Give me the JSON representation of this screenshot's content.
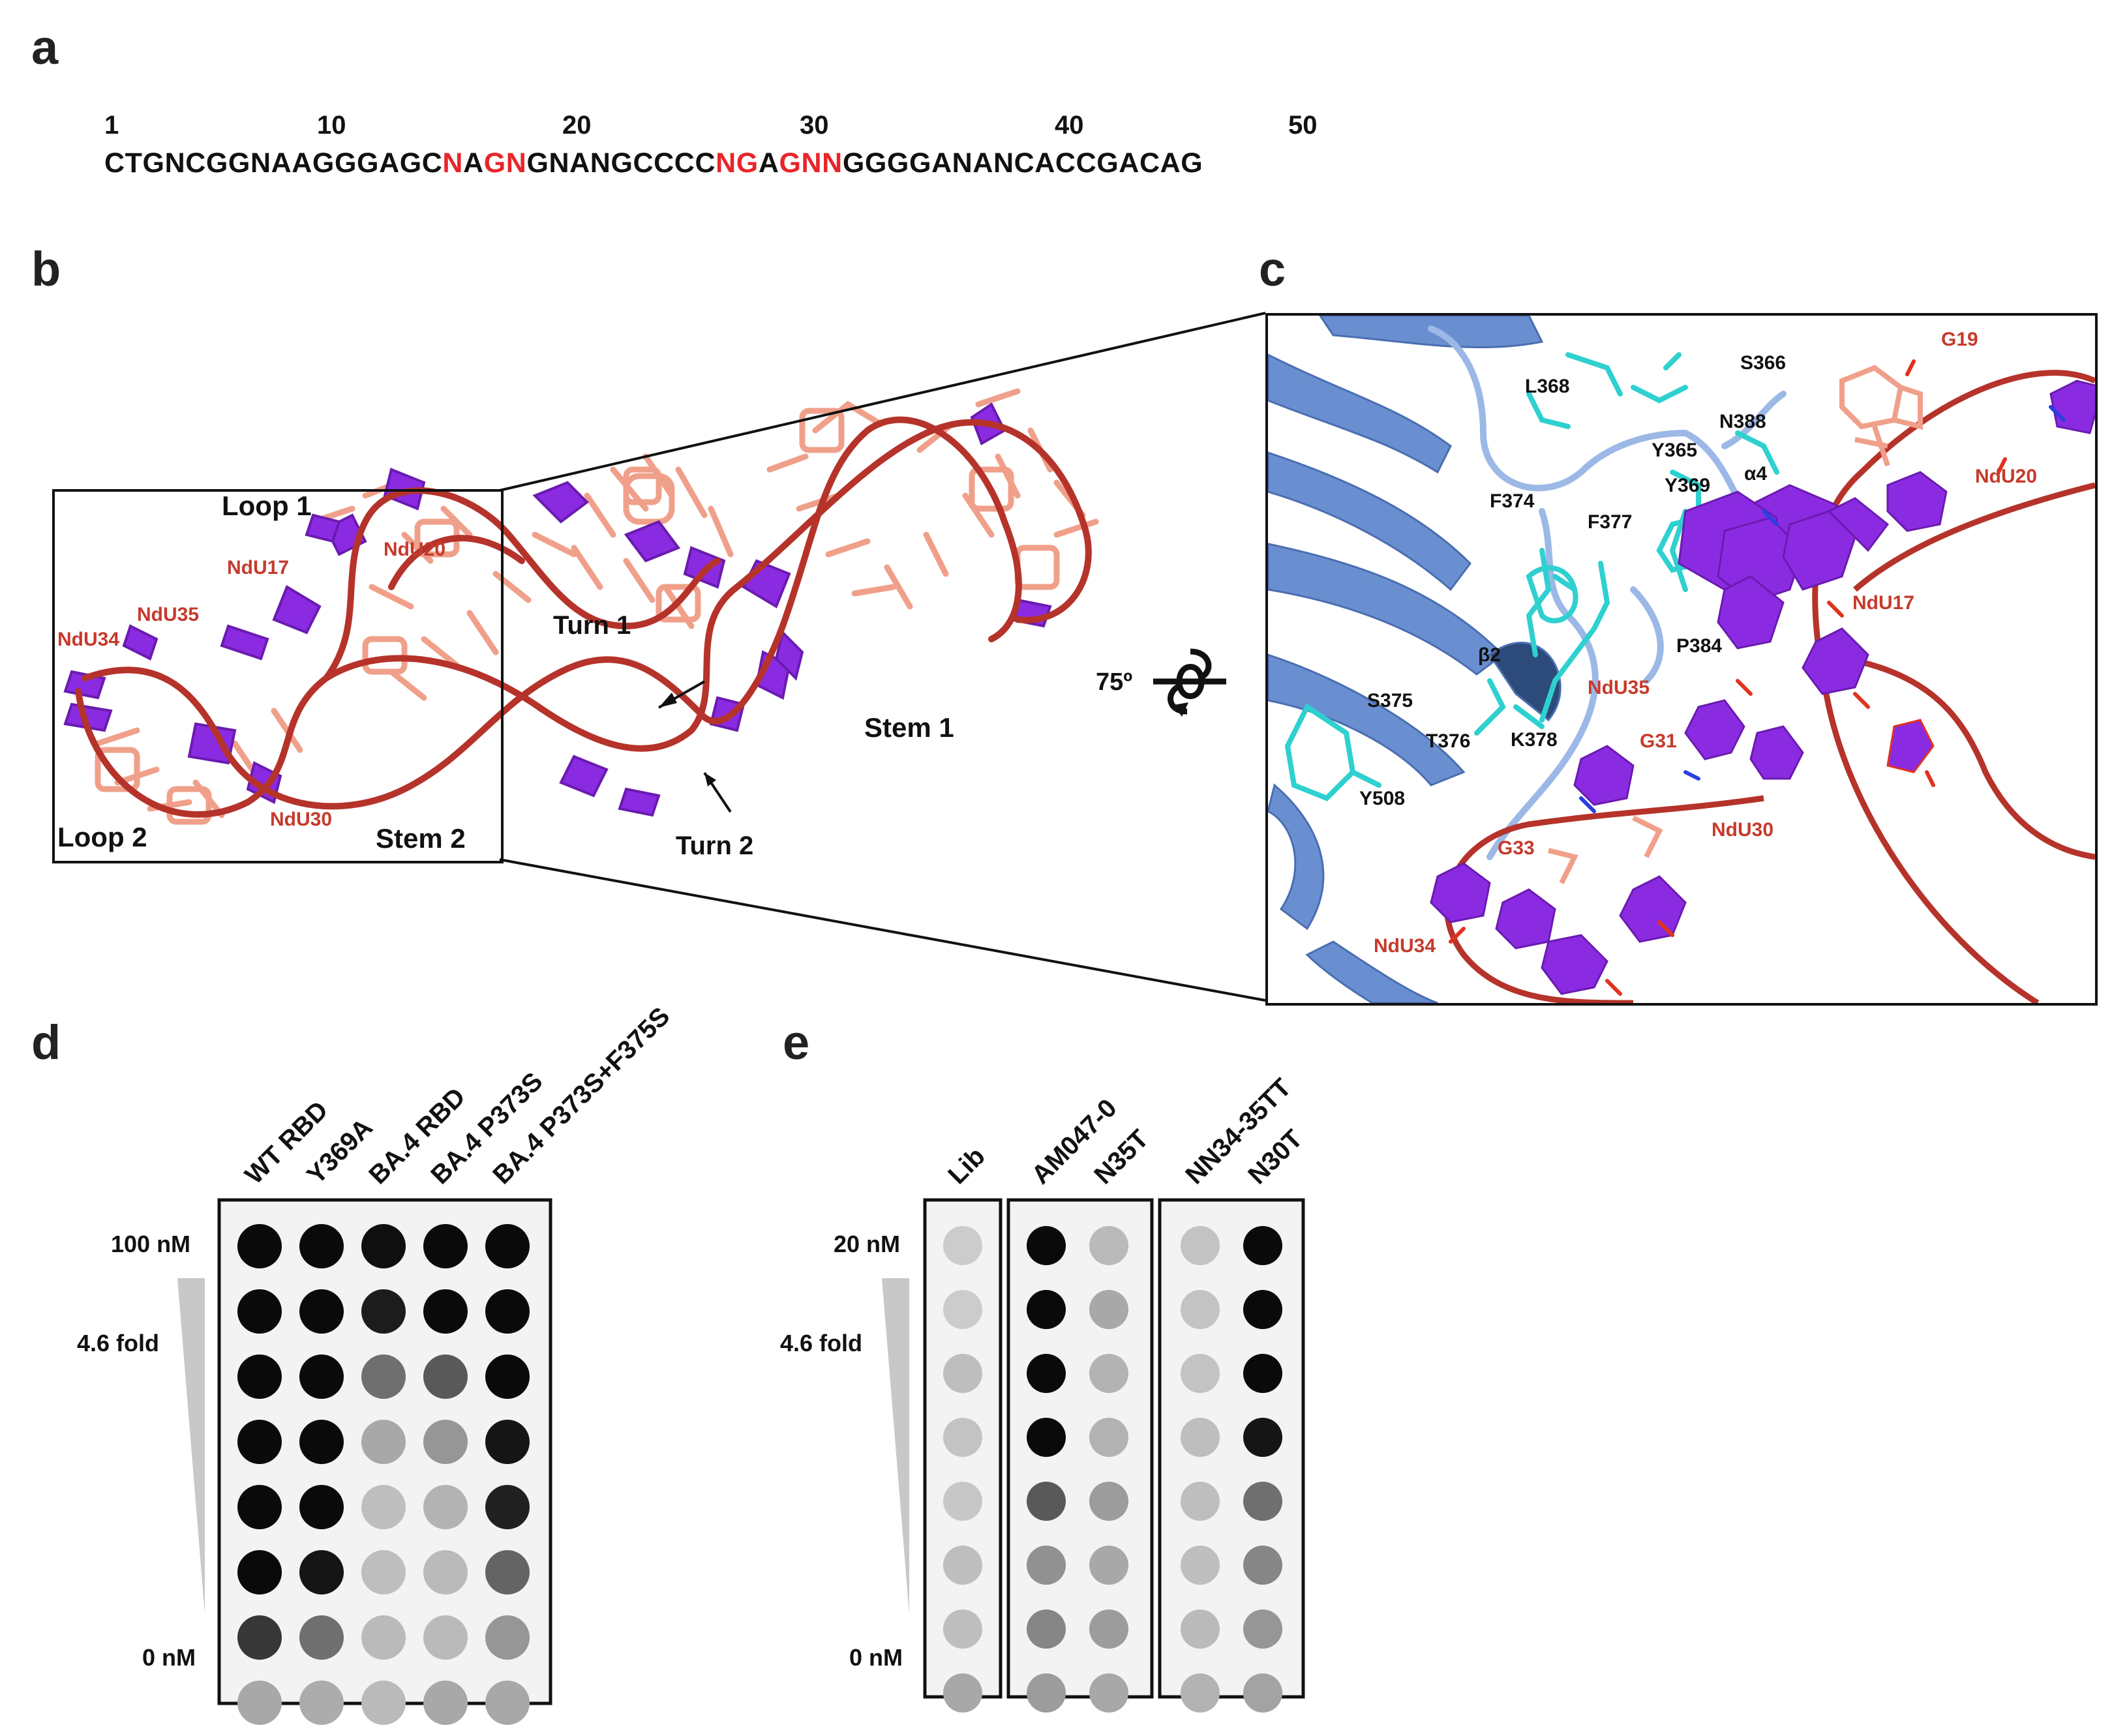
{
  "panels": {
    "a": {
      "letter": "a",
      "positions": [
        "1",
        "10",
        "20",
        "30",
        "40",
        "50"
      ],
      "sequence": [
        {
          "text": "CTGNCGGNAAGGGAGC",
          "highlight": false
        },
        {
          "text": "N",
          "highlight": true
        },
        {
          "text": "A",
          "highlight": false
        },
        {
          "text": "GN",
          "highlight": true
        },
        {
          "text": "GNANGCCCC",
          "highlight": false
        },
        {
          "text": "NG",
          "highlight": true
        },
        {
          "text": "A",
          "highlight": false
        },
        {
          "text": "GNN",
          "highlight": true
        },
        {
          "text": "GGGGANANCACCGACAG",
          "highlight": false
        }
      ]
    },
    "b": {
      "letter": "b",
      "labels": {
        "loop1": "Loop 1",
        "loop2": "Loop 2",
        "stem1": "Stem 1",
        "stem2": "Stem 2",
        "turn1": "Turn 1",
        "turn2": "Turn 2",
        "ndu17": "NdU17",
        "ndu20": "NdU20",
        "ndu34": "NdU34",
        "ndu35": "NdU35",
        "ndu30": "NdU30"
      }
    },
    "c": {
      "letter": "c",
      "rotation": "75º",
      "residues": {
        "l368": "L368",
        "s366": "S366",
        "y365": "Y365",
        "n388": "N388",
        "y369": "Y369",
        "a4": "α4",
        "f374": "F374",
        "f377": "F377",
        "b2": "β2",
        "p384": "P384",
        "s375": "S375",
        "t376": "T376",
        "k378": "K378",
        "y508": "Y508"
      },
      "nucleotides": {
        "g19": "G19",
        "ndu20": "NdU20",
        "ndu17": "NdU17",
        "ndu35": "NdU35",
        "g31": "G31",
        "ndu30": "NdU30",
        "g33": "G33",
        "ndu34": "NdU34"
      }
    },
    "d": {
      "letter": "d",
      "columns": [
        "WT RBD",
        "Y369A",
        "BA.4 RBD",
        "BA.4 P373S",
        "BA.4 P373S+F375S"
      ],
      "top_label": "100 nM",
      "mid_label": "4.6 fold",
      "bottom_label": "0 nM",
      "intensity": [
        [
          1.0,
          1.0,
          0.98,
          1.0,
          1.0
        ],
        [
          1.0,
          1.0,
          0.92,
          1.0,
          1.0
        ],
        [
          1.0,
          1.0,
          0.55,
          0.65,
          1.0
        ],
        [
          1.0,
          1.0,
          0.3,
          0.38,
          0.95
        ],
        [
          1.0,
          1.0,
          0.2,
          0.25,
          0.9
        ],
        [
          1.0,
          0.95,
          0.2,
          0.22,
          0.6
        ],
        [
          0.8,
          0.55,
          0.22,
          0.22,
          0.38
        ],
        [
          0.3,
          0.28,
          0.22,
          0.3,
          0.3
        ]
      ]
    },
    "e": {
      "letter": "e",
      "columns": [
        "Lib",
        "AM047-0",
        "N35T",
        "NN34-35TT",
        "N30T"
      ],
      "top_label": "20 nM",
      "mid_label": "4.6 fold",
      "bottom_label": "0 nM",
      "intensity": [
        [
          0.14,
          1.0,
          0.22,
          0.18,
          1.0
        ],
        [
          0.14,
          1.0,
          0.3,
          0.18,
          1.0
        ],
        [
          0.2,
          1.0,
          0.25,
          0.18,
          1.0
        ],
        [
          0.18,
          1.0,
          0.25,
          0.2,
          0.95
        ],
        [
          0.16,
          0.65,
          0.35,
          0.2,
          0.55
        ],
        [
          0.2,
          0.4,
          0.3,
          0.2,
          0.45
        ],
        [
          0.2,
          0.45,
          0.35,
          0.22,
          0.38
        ],
        [
          0.3,
          0.35,
          0.3,
          0.25,
          0.32
        ]
      ]
    }
  },
  "colors": {
    "highlight_red": "#e8252b",
    "label_red": "#c63a2c",
    "rna_backbone": "#b5332a",
    "modified_purple": "#8a2be2",
    "base_salmon": "#f0a08a",
    "protein_blue": "#6a8fd0",
    "residue_cyan": "#2fd0d0"
  }
}
